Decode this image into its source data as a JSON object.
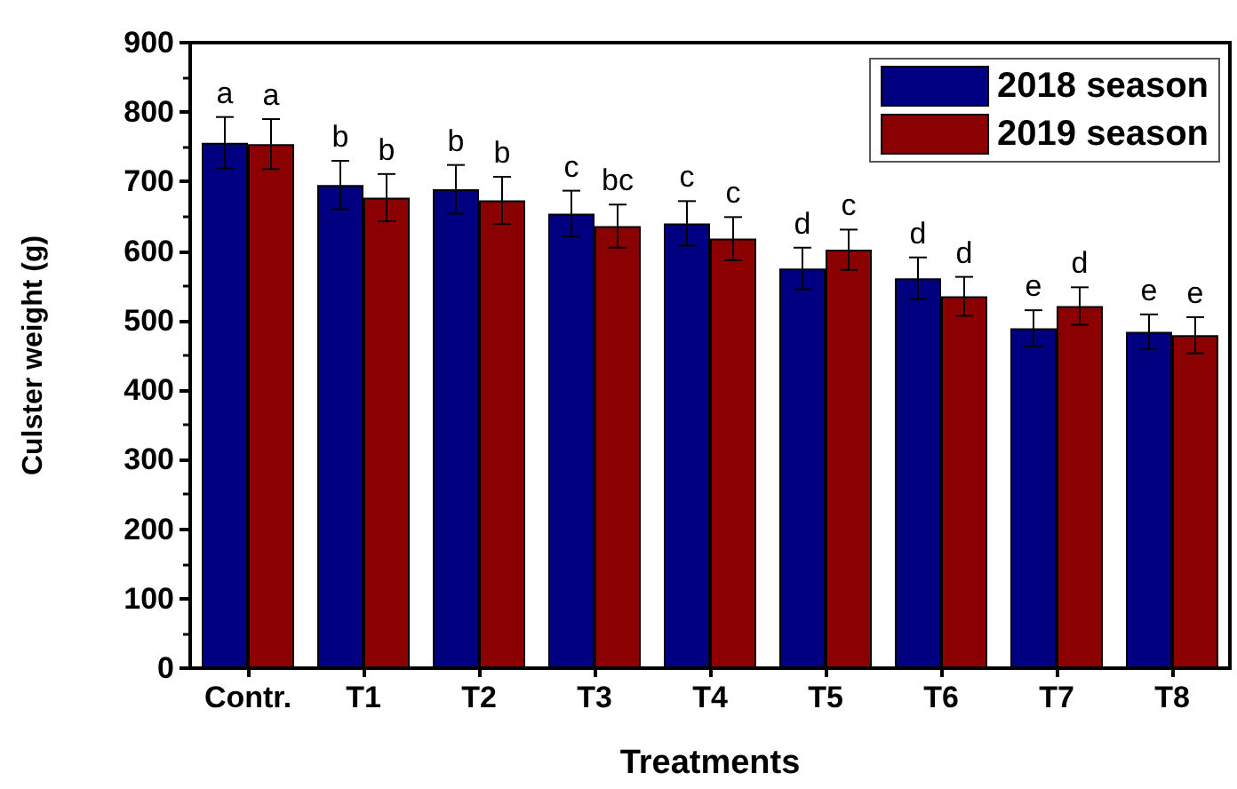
{
  "chart_data": {
    "type": "bar",
    "xlabel": "Treatments",
    "ylabel": "Culster weight (g)",
    "categories": [
      "Contr.",
      "T1",
      "T2",
      "T3",
      "T4",
      "T5",
      "T6",
      "T7",
      "T8"
    ],
    "series": [
      {
        "name": "2018 season",
        "color": "#000080",
        "values": [
          756,
          695,
          689,
          654,
          640,
          575,
          561,
          489,
          484
        ],
        "errors": [
          37,
          35,
          35,
          33,
          32,
          30,
          30,
          26,
          25
        ],
        "value_labels": [
          "a",
          "b",
          "b",
          "c",
          "c",
          "d",
          "d",
          "e",
          "e"
        ]
      },
      {
        "name": "2019 season",
        "color": "#8b0000",
        "values": [
          754,
          677,
          673,
          636,
          618,
          602,
          535,
          521,
          479
        ],
        "errors": [
          36,
          34,
          34,
          31,
          31,
          29,
          28,
          27,
          26
        ],
        "value_labels": [
          "a",
          "b",
          "b",
          "bc",
          "c",
          "c",
          "d",
          "d",
          "e"
        ]
      }
    ],
    "ylim": [
      0,
      900
    ],
    "yticks": [
      0,
      100,
      200,
      300,
      400,
      500,
      600,
      700,
      800,
      900
    ],
    "grid": false,
    "legend": "top right"
  }
}
